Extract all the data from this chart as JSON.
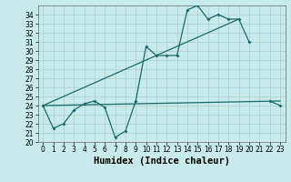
{
  "xlabel": "Humidex (Indice chaleur)",
  "x": [
    0,
    1,
    2,
    3,
    4,
    5,
    6,
    7,
    8,
    9,
    10,
    11,
    12,
    13,
    14,
    15,
    16,
    17,
    18,
    19,
    20,
    21,
    22,
    23
  ],
  "y_main": [
    24.0,
    21.5,
    22.0,
    23.5,
    24.2,
    24.5,
    23.8,
    20.5,
    21.2,
    24.5,
    30.5,
    29.5,
    29.5,
    29.5,
    34.5,
    35.0,
    33.5,
    34.0,
    33.5,
    33.5,
    31.0,
    null,
    24.5,
    24.0
  ],
  "trend1_x": [
    0,
    19
  ],
  "trend1_y": [
    24.0,
    33.5
  ],
  "trend2_x": [
    0,
    23
  ],
  "trend2_y": [
    24.0,
    24.5
  ],
  "ylim": [
    20,
    35
  ],
  "xlim": [
    -0.5,
    23.5
  ],
  "color": "#1a6b6b",
  "bg_color": "#c8eaea",
  "grid_color": "#a8d0d0",
  "tick_fontsize": 5.5,
  "label_fontsize": 7.5,
  "marker_size": 2.0,
  "line_width": 0.9
}
